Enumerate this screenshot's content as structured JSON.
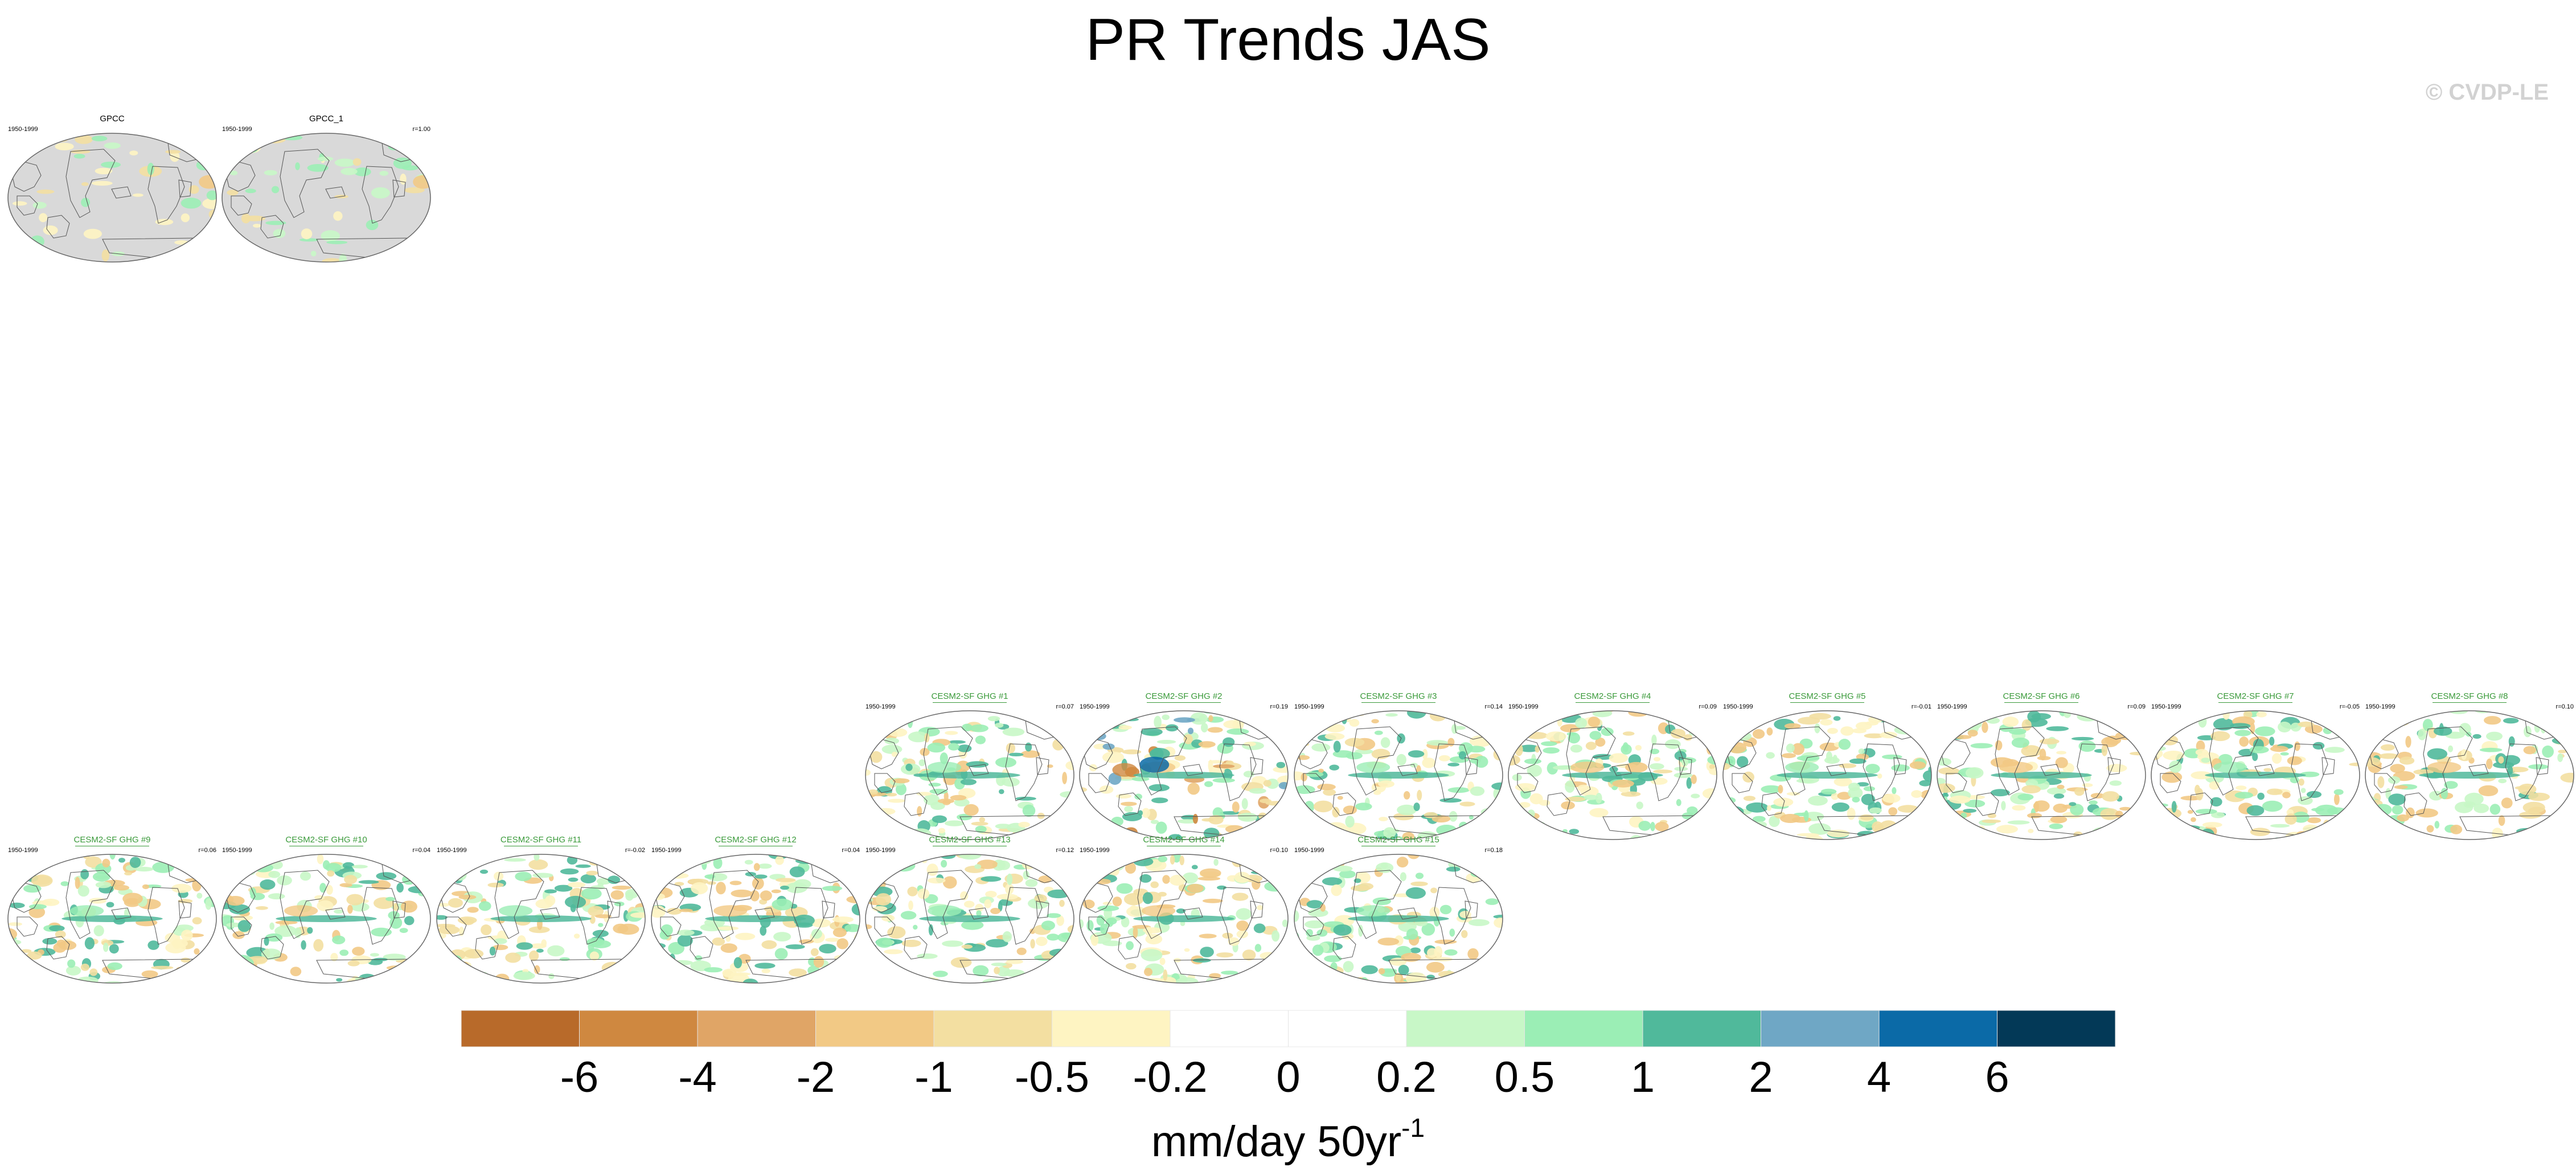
{
  "title": "PR Trends JAS",
  "copyright": "© CVDP-LE",
  "panels": [
    {
      "id": "obs-1",
      "title": "GPCC",
      "period": "1950-1999",
      "corr": "",
      "type": "obs",
      "row": 0,
      "col": 0,
      "anomaly": "weak"
    },
    {
      "id": "obs-2",
      "title": "GPCC_1",
      "period": "1950-1999",
      "corr": "r=1.00",
      "type": "obs",
      "row": 0,
      "col": 1,
      "anomaly": "weak"
    },
    {
      "id": "m1",
      "title": "CESM2-SF GHG #1",
      "period": "1950-1999",
      "corr": "r=0.07",
      "type": "model",
      "row": 1,
      "col": 4
    },
    {
      "id": "m2",
      "title": "CESM2-SF GHG #2",
      "period": "1950-1999",
      "corr": "r=0.19",
      "type": "model",
      "row": 1,
      "col": 5,
      "anomaly": "strong"
    },
    {
      "id": "m3",
      "title": "CESM2-SF GHG #3",
      "period": "1950-1999",
      "corr": "r=0.14",
      "type": "model",
      "row": 1,
      "col": 6
    },
    {
      "id": "m4",
      "title": "CESM2-SF GHG #4",
      "period": "1950-1999",
      "corr": "r=0.09",
      "type": "model",
      "row": 1,
      "col": 7
    },
    {
      "id": "m5",
      "title": "CESM2-SF GHG #5",
      "period": "1950-1999",
      "corr": "r=-0.01",
      "type": "model",
      "row": 1,
      "col": 8
    },
    {
      "id": "m6",
      "title": "CESM2-SF GHG #6",
      "period": "1950-1999",
      "corr": "r=0.09",
      "type": "model",
      "row": 1,
      "col": 9
    },
    {
      "id": "m7",
      "title": "CESM2-SF GHG #7",
      "period": "1950-1999",
      "corr": "r=-0.05",
      "type": "model",
      "row": 1,
      "col": 10
    },
    {
      "id": "m8",
      "title": "CESM2-SF GHG #8",
      "period": "1950-1999",
      "corr": "r=0.10",
      "type": "model",
      "row": 1,
      "col": 11
    },
    {
      "id": "m9",
      "title": "CESM2-SF GHG #9",
      "period": "1950-1999",
      "corr": "r=0.06",
      "type": "model",
      "row": 2,
      "col": 0
    },
    {
      "id": "m10",
      "title": "CESM2-SF GHG #10",
      "period": "1950-1999",
      "corr": "r=0.04",
      "type": "model",
      "row": 2,
      "col": 1
    },
    {
      "id": "m11",
      "title": "CESM2-SF GHG #11",
      "period": "1950-1999",
      "corr": "r=-0.02",
      "type": "model",
      "row": 2,
      "col": 2
    },
    {
      "id": "m12",
      "title": "CESM2-SF GHG #12",
      "period": "1950-1999",
      "corr": "r=0.04",
      "type": "model",
      "row": 2,
      "col": 3
    },
    {
      "id": "m13",
      "title": "CESM2-SF GHG #13",
      "period": "1950-1999",
      "corr": "r=0.12",
      "type": "model",
      "row": 2,
      "col": 4
    },
    {
      "id": "m14",
      "title": "CESM2-SF GHG #14",
      "period": "1950-1999",
      "corr": "r=0.10",
      "type": "model",
      "row": 2,
      "col": 5
    },
    {
      "id": "m15",
      "title": "CESM2-SF GHG #15",
      "period": "1950-1999",
      "corr": "r=0.18",
      "type": "model",
      "row": 2,
      "col": 6
    }
  ],
  "colorbar": {
    "units_main": "mm/day 50yr",
    "units_sup": "-1",
    "boundaries": [
      "-6",
      "-4",
      "-2",
      "-1",
      "-0.5",
      "-0.2",
      "0",
      "0.2",
      "0.5",
      "1",
      "2",
      "4",
      "6"
    ],
    "colors": [
      "#b86a2a",
      "#cf8840",
      "#e0a566",
      "#f2c985",
      "#f3dfa1",
      "#fef4c2",
      "#ffffff",
      "#ffffff",
      "#c8f7c7",
      "#9beeb5",
      "#50b99b",
      "#6fa7c5",
      "#0b6aa7",
      "#033957"
    ]
  },
  "colors": {
    "land": "#d9d9d9",
    "model_title": "#3a9a3a"
  }
}
